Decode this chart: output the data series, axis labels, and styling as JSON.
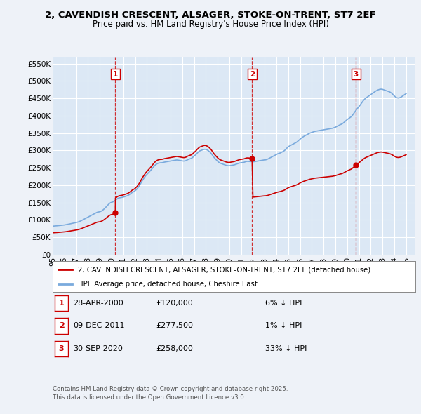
{
  "title": "2, CAVENDISH CRESCENT, ALSAGER, STOKE-ON-TRENT, ST7 2EF",
  "subtitle": "Price paid vs. HM Land Registry's House Price Index (HPI)",
  "ylabel_ticks": [
    "£0",
    "£50K",
    "£100K",
    "£150K",
    "£200K",
    "£250K",
    "£300K",
    "£350K",
    "£400K",
    "£450K",
    "£500K",
    "£550K"
  ],
  "ytick_values": [
    0,
    50000,
    100000,
    150000,
    200000,
    250000,
    300000,
    350000,
    400000,
    450000,
    500000,
    550000
  ],
  "ylim": [
    0,
    570000
  ],
  "xlim_start": 1995.0,
  "xlim_end": 2025.8,
  "background_color": "#eef2f8",
  "plot_bg_color": "#dce8f5",
  "grid_color": "#ffffff",
  "sale_color": "#cc0000",
  "hpi_color": "#7aaadd",
  "sale_label": "2, CAVENDISH CRESCENT, ALSAGER, STOKE-ON-TRENT, ST7 2EF (detached house)",
  "hpi_label": "HPI: Average price, detached house, Cheshire East",
  "transactions": [
    {
      "label": "1",
      "date": "28-APR-2000",
      "price": 120000,
      "pct": "6% ↓ HPI",
      "year": 2000.32
    },
    {
      "label": "2",
      "date": "09-DEC-2011",
      "price": 277500,
      "pct": "1% ↓ HPI",
      "year": 2011.93
    },
    {
      "label": "3",
      "date": "30-SEP-2020",
      "price": 258000,
      "pct": "33% ↓ HPI",
      "year": 2020.75
    }
  ],
  "footer_line1": "Contains HM Land Registry data © Crown copyright and database right 2025.",
  "footer_line2": "This data is licensed under the Open Government Licence v3.0.",
  "hpi_data_x": [
    1995.0,
    1995.083,
    1995.167,
    1995.25,
    1995.333,
    1995.417,
    1995.5,
    1995.583,
    1995.667,
    1995.75,
    1995.833,
    1995.917,
    1996.0,
    1996.083,
    1996.167,
    1996.25,
    1996.333,
    1996.417,
    1996.5,
    1996.583,
    1996.667,
    1996.75,
    1996.833,
    1996.917,
    1997.0,
    1997.083,
    1997.167,
    1997.25,
    1997.333,
    1997.417,
    1997.5,
    1997.583,
    1997.667,
    1997.75,
    1997.833,
    1997.917,
    1998.0,
    1998.083,
    1998.167,
    1998.25,
    1998.333,
    1998.417,
    1998.5,
    1998.583,
    1998.667,
    1998.75,
    1998.833,
    1998.917,
    1999.0,
    1999.083,
    1999.167,
    1999.25,
    1999.333,
    1999.417,
    1999.5,
    1999.583,
    1999.667,
    1999.75,
    1999.833,
    1999.917,
    2000.0,
    2000.083,
    2000.167,
    2000.25,
    2000.333,
    2000.417,
    2000.5,
    2000.583,
    2000.667,
    2000.75,
    2000.833,
    2000.917,
    2001.0,
    2001.083,
    2001.167,
    2001.25,
    2001.333,
    2001.417,
    2001.5,
    2001.583,
    2001.667,
    2001.75,
    2001.833,
    2001.917,
    2002.0,
    2002.083,
    2002.167,
    2002.25,
    2002.333,
    2002.417,
    2002.5,
    2002.583,
    2002.667,
    2002.75,
    2002.833,
    2002.917,
    2003.0,
    2003.083,
    2003.167,
    2003.25,
    2003.333,
    2003.417,
    2003.5,
    2003.583,
    2003.667,
    2003.75,
    2003.833,
    2003.917,
    2004.0,
    2004.083,
    2004.167,
    2004.25,
    2004.333,
    2004.417,
    2004.5,
    2004.583,
    2004.667,
    2004.75,
    2004.833,
    2004.917,
    2005.0,
    2005.083,
    2005.167,
    2005.25,
    2005.333,
    2005.417,
    2005.5,
    2005.583,
    2005.667,
    2005.75,
    2005.833,
    2005.917,
    2006.0,
    2006.083,
    2006.167,
    2006.25,
    2006.333,
    2006.417,
    2006.5,
    2006.583,
    2006.667,
    2006.75,
    2006.833,
    2006.917,
    2007.0,
    2007.083,
    2007.167,
    2007.25,
    2007.333,
    2007.417,
    2007.5,
    2007.583,
    2007.667,
    2007.75,
    2007.833,
    2007.917,
    2008.0,
    2008.083,
    2008.167,
    2008.25,
    2008.333,
    2008.417,
    2008.5,
    2008.583,
    2008.667,
    2008.75,
    2008.833,
    2008.917,
    2009.0,
    2009.083,
    2009.167,
    2009.25,
    2009.333,
    2009.417,
    2009.5,
    2009.583,
    2009.667,
    2009.75,
    2009.833,
    2009.917,
    2010.0,
    2010.083,
    2010.167,
    2010.25,
    2010.333,
    2010.417,
    2010.5,
    2010.583,
    2010.667,
    2010.75,
    2010.833,
    2010.917,
    2011.0,
    2011.083,
    2011.167,
    2011.25,
    2011.333,
    2011.417,
    2011.5,
    2011.583,
    2011.667,
    2011.75,
    2011.833,
    2011.917,
    2012.0,
    2012.083,
    2012.167,
    2012.25,
    2012.333,
    2012.417,
    2012.5,
    2012.583,
    2012.667,
    2012.75,
    2012.833,
    2012.917,
    2013.0,
    2013.083,
    2013.167,
    2013.25,
    2013.333,
    2013.417,
    2013.5,
    2013.583,
    2013.667,
    2013.75,
    2013.833,
    2013.917,
    2014.0,
    2014.083,
    2014.167,
    2014.25,
    2014.333,
    2014.417,
    2014.5,
    2014.583,
    2014.667,
    2014.75,
    2014.833,
    2014.917,
    2015.0,
    2015.083,
    2015.167,
    2015.25,
    2015.333,
    2015.417,
    2015.5,
    2015.583,
    2015.667,
    2015.75,
    2015.833,
    2015.917,
    2016.0,
    2016.083,
    2016.167,
    2016.25,
    2016.333,
    2016.417,
    2016.5,
    2016.583,
    2016.667,
    2016.75,
    2016.833,
    2016.917,
    2017.0,
    2017.083,
    2017.167,
    2017.25,
    2017.333,
    2017.417,
    2017.5,
    2017.583,
    2017.667,
    2017.75,
    2017.833,
    2017.917,
    2018.0,
    2018.083,
    2018.167,
    2018.25,
    2018.333,
    2018.417,
    2018.5,
    2018.583,
    2018.667,
    2018.75,
    2018.833,
    2018.917,
    2019.0,
    2019.083,
    2019.167,
    2019.25,
    2019.333,
    2019.417,
    2019.5,
    2019.583,
    2019.667,
    2019.75,
    2019.833,
    2019.917,
    2020.0,
    2020.083,
    2020.167,
    2020.25,
    2020.333,
    2020.417,
    2020.5,
    2020.583,
    2020.667,
    2020.75,
    2020.833,
    2020.917,
    2021.0,
    2021.083,
    2021.167,
    2021.25,
    2021.333,
    2021.417,
    2021.5,
    2021.583,
    2021.667,
    2021.75,
    2021.833,
    2021.917,
    2022.0,
    2022.083,
    2022.167,
    2022.25,
    2022.333,
    2022.417,
    2022.5,
    2022.583,
    2022.667,
    2022.75,
    2022.833,
    2022.917,
    2023.0,
    2023.083,
    2023.167,
    2023.25,
    2023.333,
    2023.417,
    2023.5,
    2023.583,
    2023.667,
    2023.75,
    2023.833,
    2023.917,
    2024.0,
    2024.083,
    2024.167,
    2024.25,
    2024.333,
    2024.417,
    2024.5,
    2024.583,
    2024.667,
    2024.75,
    2024.833,
    2024.917,
    2025.0
  ],
  "hpi_data_y": [
    82000,
    82200,
    82400,
    82600,
    82900,
    83200,
    83500,
    83800,
    84100,
    84400,
    84700,
    85000,
    85400,
    85900,
    86400,
    87000,
    87600,
    88200,
    88800,
    89400,
    90000,
    90600,
    91200,
    91800,
    92500,
    93200,
    94000,
    95000,
    96200,
    97500,
    99000,
    100500,
    102000,
    103500,
    105000,
    106500,
    108000,
    109500,
    111000,
    112500,
    114000,
    115500,
    117000,
    118500,
    120000,
    121500,
    122500,
    123000,
    123500,
    124500,
    126000,
    128000,
    130500,
    133000,
    136000,
    139000,
    142000,
    145000,
    147500,
    149500,
    150500,
    151500,
    153000,
    155000,
    157000,
    159000,
    161000,
    162500,
    163500,
    164000,
    164500,
    165000,
    165800,
    166600,
    167500,
    168500,
    169500,
    170800,
    172500,
    174500,
    176800,
    179000,
    180500,
    182000,
    184000,
    186500,
    189500,
    193000,
    197000,
    201500,
    206500,
    211500,
    216000,
    220000,
    224000,
    228000,
    231000,
    234000,
    237000,
    240000,
    243000,
    246500,
    250000,
    253500,
    256500,
    259000,
    261000,
    262500,
    263500,
    264000,
    264500,
    264500,
    265000,
    265800,
    266500,
    267000,
    267500,
    268000,
    268500,
    269000,
    269500,
    270000,
    270500,
    271000,
    271500,
    272000,
    272500,
    272500,
    272000,
    271500,
    271000,
    270500,
    270000,
    269500,
    269500,
    270000,
    271000,
    272500,
    274000,
    275000,
    276000,
    277000,
    278500,
    281000,
    283500,
    286000,
    288500,
    291500,
    294500,
    297000,
    299000,
    300000,
    301000,
    302000,
    303000,
    303500,
    303000,
    302000,
    300500,
    298500,
    296000,
    293000,
    289500,
    285500,
    281500,
    278000,
    275000,
    272000,
    269000,
    266500,
    264500,
    263000,
    262000,
    261000,
    260000,
    259000,
    258000,
    257000,
    256500,
    256000,
    256000,
    256500,
    257000,
    257500,
    258000,
    258500,
    259500,
    260500,
    261500,
    262500,
    263500,
    264000,
    264500,
    265000,
    265500,
    266000,
    267000,
    268000,
    268500,
    268500,
    268200,
    268000,
    267800,
    267600,
    267500,
    267500,
    268000,
    268500,
    269000,
    269500,
    270000,
    270500,
    271000,
    271500,
    272000,
    272500,
    273000,
    273000,
    274000,
    275000,
    276500,
    278000,
    279500,
    281000,
    282500,
    284000,
    285500,
    287000,
    288500,
    290000,
    291000,
    292000,
    293000,
    294500,
    296000,
    297500,
    299500,
    302000,
    305000,
    308000,
    310500,
    312500,
    314000,
    315500,
    317000,
    318500,
    320000,
    321500,
    323000,
    325000,
    327500,
    330000,
    332500,
    335000,
    337000,
    339000,
    341000,
    342500,
    344000,
    345500,
    347000,
    348500,
    350000,
    351000,
    352000,
    353000,
    354000,
    355000,
    355500,
    356000,
    356500,
    357000,
    357500,
    358000,
    358500,
    359000,
    359500,
    360000,
    360500,
    361000,
    361500,
    362000,
    362500,
    363000,
    363500,
    364000,
    365000,
    366000,
    367000,
    368500,
    370000,
    371500,
    373000,
    374500,
    375500,
    377000,
    379000,
    381500,
    384000,
    386500,
    389000,
    391000,
    393000,
    395000,
    397000,
    400000,
    404000,
    408000,
    412000,
    416000,
    419500,
    423000,
    426500,
    430000,
    434000,
    438000,
    442000,
    445500,
    448500,
    451000,
    453000,
    455000,
    457000,
    459000,
    461000,
    463000,
    465000,
    467000,
    469000,
    471000,
    472500,
    474000,
    475000,
    476000,
    476500,
    476500,
    476000,
    475000,
    474000,
    473000,
    472000,
    471000,
    470000,
    469000,
    467500,
    465500,
    463000,
    460000,
    457000,
    454500,
    452500,
    451500,
    451000,
    451500,
    452500,
    454000,
    456000,
    458000,
    460000,
    462000,
    464000
  ]
}
